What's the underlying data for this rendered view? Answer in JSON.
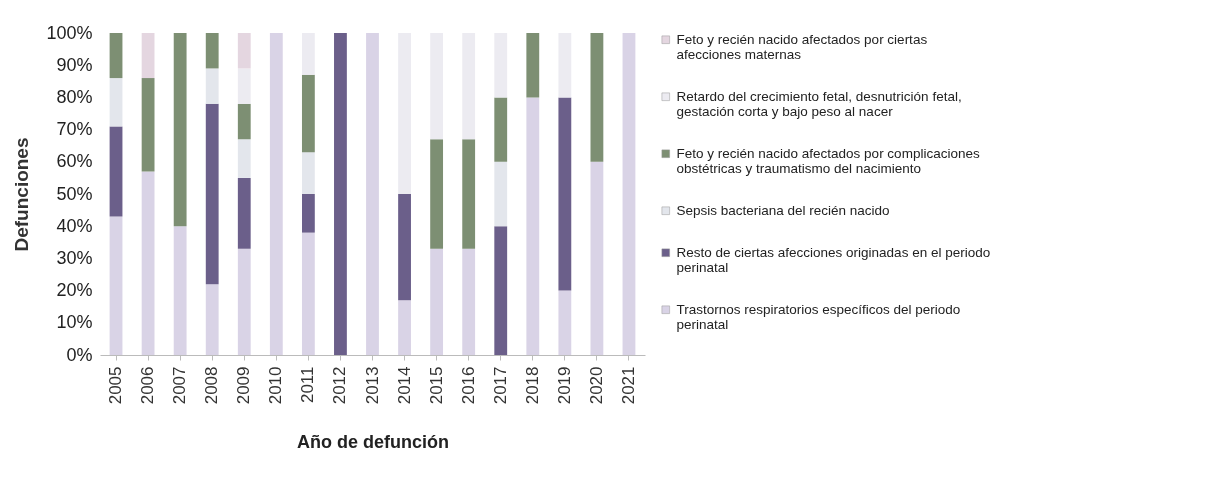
{
  "chart_data": {
    "type": "bar",
    "stacked": true,
    "xlabel": "Año de defunción",
    "ylabel": "Defunciones",
    "categories": [
      "2005",
      "2006",
      "2007",
      "2008",
      "2009",
      "2010",
      "2011",
      "2012",
      "2013",
      "2014",
      "2015",
      "2016",
      "2017",
      "2018",
      "2019",
      "2020",
      "2021"
    ],
    "ylim": [
      0,
      100
    ],
    "yticks": [
      {
        "value": 0,
        "label": "0%"
      },
      {
        "value": 10,
        "label": "10%"
      },
      {
        "value": 20,
        "label": "20%"
      },
      {
        "value": 30,
        "label": "30%"
      },
      {
        "value": 40,
        "label": "40%"
      },
      {
        "value": 50,
        "label": "50%"
      },
      {
        "value": 60,
        "label": "60%"
      },
      {
        "value": 70,
        "label": "70%"
      },
      {
        "value": 80,
        "label": "80%"
      },
      {
        "value": 90,
        "label": "90%"
      },
      {
        "value": 100,
        "label": "100%"
      }
    ],
    "grid": false,
    "legend": "right",
    "series": [
      {
        "name": "Trastornos respiratorios específicos del periodo perinatal",
        "color": "#d9d3e6",
        "values": [
          43,
          57,
          40,
          22,
          33,
          100,
          38,
          0,
          100,
          17,
          33,
          33,
          0,
          80,
          20,
          60,
          100
        ]
      },
      {
        "name": "Resto de ciertas afecciones originadas en el periodo perinatal",
        "color": "#6b5f8a",
        "values": [
          28,
          0,
          0,
          56,
          22,
          0,
          12,
          100,
          0,
          33,
          0,
          0,
          40,
          0,
          60,
          0,
          0
        ]
      },
      {
        "name": "Sepsis bacteriana del recién nacido",
        "color": "#e3e6ec",
        "values": [
          15,
          0,
          0,
          11,
          12,
          0,
          13,
          0,
          0,
          0,
          0,
          0,
          20,
          0,
          0,
          0,
          0
        ]
      },
      {
        "name": "Feto y recién nacido afectados por complicaciones obstétricas y traumatismo del nacimiento",
        "color": "#7d8f73",
        "values": [
          14,
          29,
          60,
          11,
          11,
          0,
          24,
          0,
          0,
          0,
          34,
          34,
          20,
          20,
          0,
          40,
          0
        ]
      },
      {
        "name": "Retardo del crecimiento fetal, desnutrición fetal, gestación corta y bajo peso al nacer",
        "color": "#ecebf1",
        "values": [
          0,
          0,
          0,
          0,
          11,
          0,
          13,
          0,
          0,
          50,
          33,
          33,
          20,
          0,
          20,
          0,
          0
        ]
      },
      {
        "name": "Feto y recién nacido afectados por ciertas afecciones maternas",
        "color": "#e4d6e0",
        "values": [
          0,
          14,
          0,
          0,
          11,
          0,
          0,
          0,
          0,
          0,
          0,
          0,
          0,
          0,
          0,
          0,
          0
        ]
      }
    ]
  }
}
